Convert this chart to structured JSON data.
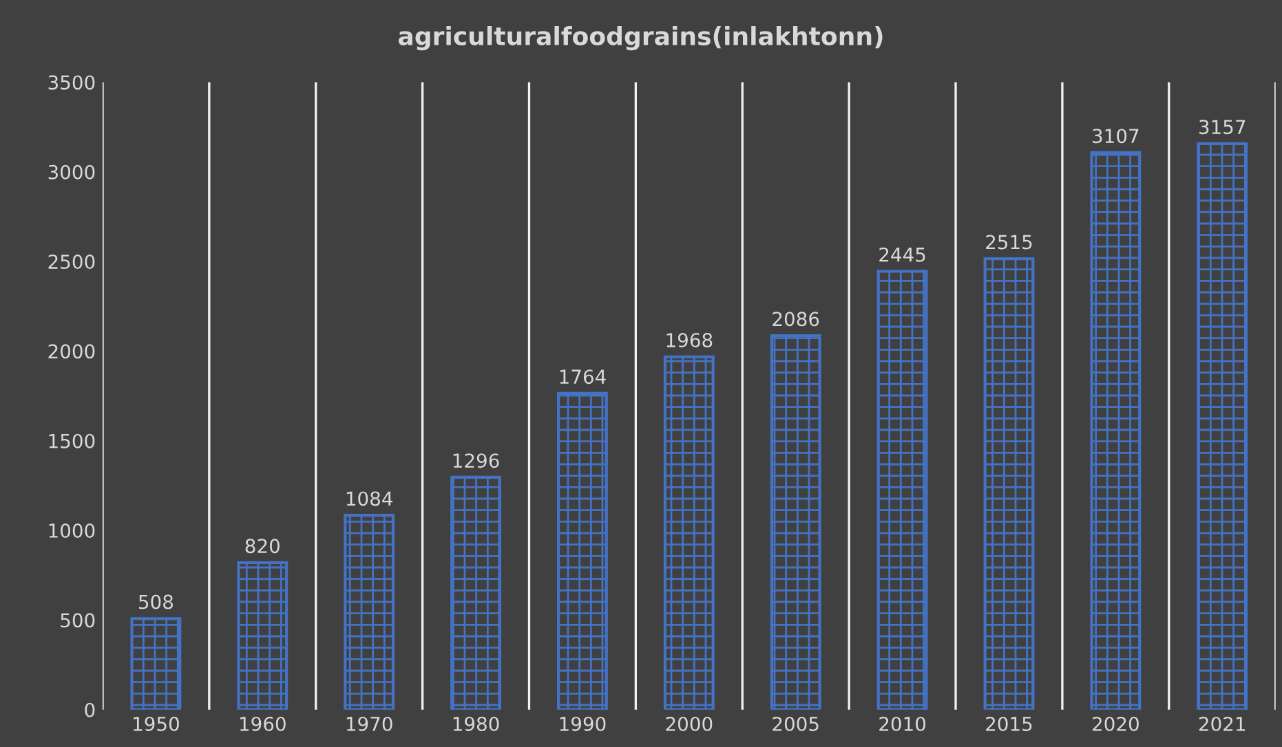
{
  "chart_data": {
    "type": "bar",
    "title": "agriculturalfoodgrains(inlakhtonn)",
    "categories": [
      "1950",
      "1960",
      "1970",
      "1980",
      "1990",
      "2000",
      "2005",
      "2010",
      "2015",
      "2020",
      "2021"
    ],
    "values": [
      508,
      820,
      1084,
      1296,
      1764,
      1968,
      2086,
      2445,
      2515,
      3107,
      3157
    ],
    "color": "#4472c4",
    "ylim": [
      0,
      3500
    ],
    "yticks": [
      0,
      500,
      1000,
      1500,
      2000,
      2500,
      3000,
      3500
    ],
    "grid": "x",
    "data_labels": true
  }
}
